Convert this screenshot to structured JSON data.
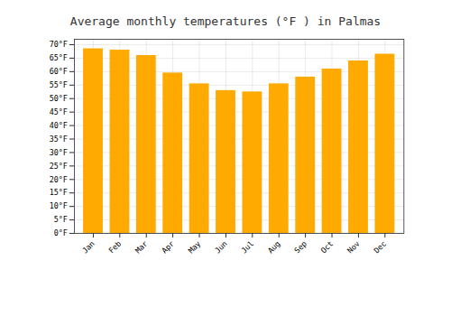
{
  "chart_data": {
    "type": "bar",
    "title": "Average monthly temperatures (°F ) in Palmas",
    "categories": [
      "Jan",
      "Feb",
      "Mar",
      "Apr",
      "May",
      "Jun",
      "Jul",
      "Aug",
      "Sep",
      "Oct",
      "Nov",
      "Dec"
    ],
    "values": [
      68.5,
      68.0,
      66.0,
      59.5,
      55.5,
      53.0,
      52.5,
      55.5,
      58.0,
      61.0,
      64.0,
      66.5
    ],
    "color": "#FFAA00",
    "ylim": [
      0,
      72
    ],
    "yticks": [
      {
        "value": 0,
        "label": "0°F"
      },
      {
        "value": 5,
        "label": "5°F"
      },
      {
        "value": 10,
        "label": "10°F"
      },
      {
        "value": 15,
        "label": "15°F"
      },
      {
        "value": 20,
        "label": "20°F"
      },
      {
        "value": 25,
        "label": "25°F"
      },
      {
        "value": 30,
        "label": "30°F"
      },
      {
        "value": 35,
        "label": "35°F"
      },
      {
        "value": 40,
        "label": "40°F"
      },
      {
        "value": 45,
        "label": "45°F"
      },
      {
        "value": 50,
        "label": "50°F"
      },
      {
        "value": 55,
        "label": "55°F"
      },
      {
        "value": 60,
        "label": "60°F"
      },
      {
        "value": 65,
        "label": "65°F"
      },
      {
        "value": 70,
        "label": "70°F"
      }
    ],
    "grid": true
  }
}
